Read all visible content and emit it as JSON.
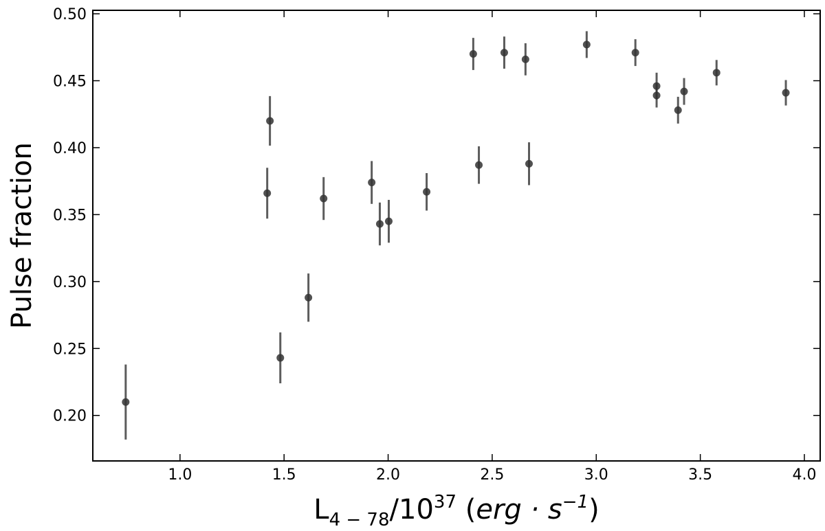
{
  "chart_data": {
    "type": "scatter",
    "ylabel": "Pulse fraction",
    "xlabel": [
      "L",
      "4 − 78",
      "/10",
      "37",
      " (",
      "erg · s",
      "−1",
      ")"
    ],
    "xlim": [
      0.581,
      4.076
    ],
    "ylim": [
      0.166,
      0.5026
    ],
    "xticks": [
      {
        "value": 1,
        "label": "1.0"
      },
      {
        "value": 1.5,
        "label": "1.5"
      },
      {
        "value": 2,
        "label": "2.0"
      },
      {
        "value": 2.5,
        "label": "2.5"
      },
      {
        "value": 3,
        "label": "3.0"
      },
      {
        "value": 3.5,
        "label": "3.5"
      },
      {
        "value": 4,
        "label": "4.0"
      }
    ],
    "yticks": [
      {
        "value": 0.2,
        "label": "0.20"
      },
      {
        "value": 0.25,
        "label": "0.25"
      },
      {
        "value": 0.3,
        "label": "0.30"
      },
      {
        "value": 0.35,
        "label": "0.35"
      },
      {
        "value": 0.4,
        "label": "0.40"
      },
      {
        "value": 0.45,
        "label": "0.45"
      },
      {
        "value": 0.5,
        "label": "0.50"
      }
    ],
    "series": [
      {
        "color": "#333333",
        "x": [
          0.739,
          1.432,
          1.419,
          1.482,
          1.617,
          1.69,
          1.921,
          1.96,
          2.003,
          2.185,
          2.409,
          2.436,
          2.558,
          2.66,
          2.677,
          2.954,
          3.188,
          3.29,
          3.29,
          3.393,
          3.422,
          3.578,
          3.911
        ],
        "values": [
          0.21,
          0.42,
          0.366,
          0.243,
          0.288,
          0.362,
          0.374,
          0.343,
          0.345,
          0.367,
          0.47,
          0.387,
          0.471,
          0.466,
          0.388,
          0.477,
          0.471,
          0.446,
          0.439,
          0.428,
          0.442,
          0.456,
          0.441
        ],
        "yerr": [
          0.028,
          0.0185,
          0.019,
          0.019,
          0.018,
          0.016,
          0.016,
          0.016,
          0.016,
          0.014,
          0.012,
          0.014,
          0.012,
          0.012,
          0.016,
          0.01,
          0.01,
          0.01,
          0.009,
          0.01,
          0.01,
          0.0095,
          0.0095
        ]
      }
    ]
  }
}
